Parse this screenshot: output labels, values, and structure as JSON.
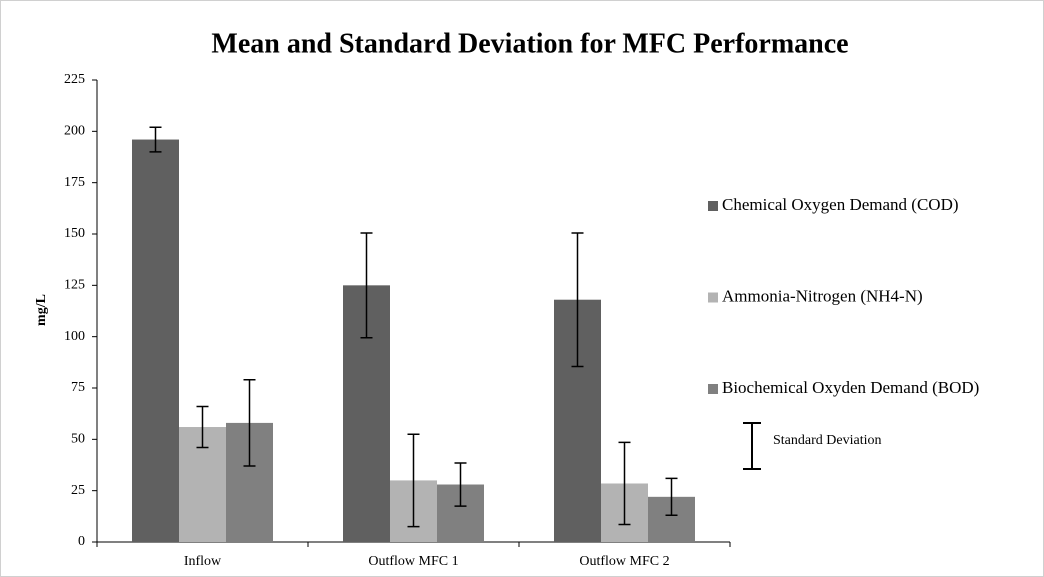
{
  "chart_data": {
    "type": "bar",
    "title": "Mean and Standard Deviation for MFC Performance",
    "y_label": "mg/L",
    "categories": [
      "Inflow",
      "Outflow MFC 1",
      "Outflow MFC 2"
    ],
    "series": [
      {
        "name": "Chemical Oxygen Demand (COD)",
        "color": "#606060",
        "values": [
          196,
          125,
          118
        ],
        "errors": [
          6,
          25.5,
          32.5
        ]
      },
      {
        "name": "Ammonia-Nitrogen (NH4-N)",
        "color": "#b3b3b3",
        "values": [
          56,
          30,
          28.5
        ],
        "errors": [
          10,
          22.5,
          20
        ]
      },
      {
        "name": "Biochemical Oxyden Demand (BOD)",
        "color": "#808080",
        "values": [
          58,
          28,
          22
        ],
        "errors": [
          21,
          10.5,
          9
        ]
      }
    ],
    "error_legend": "Standard Deviation",
    "ylim": [
      0,
      225
    ],
    "yticks": [
      0,
      25,
      50,
      75,
      100,
      125,
      150,
      175,
      200,
      225
    ],
    "grid": false,
    "legend": "right"
  }
}
